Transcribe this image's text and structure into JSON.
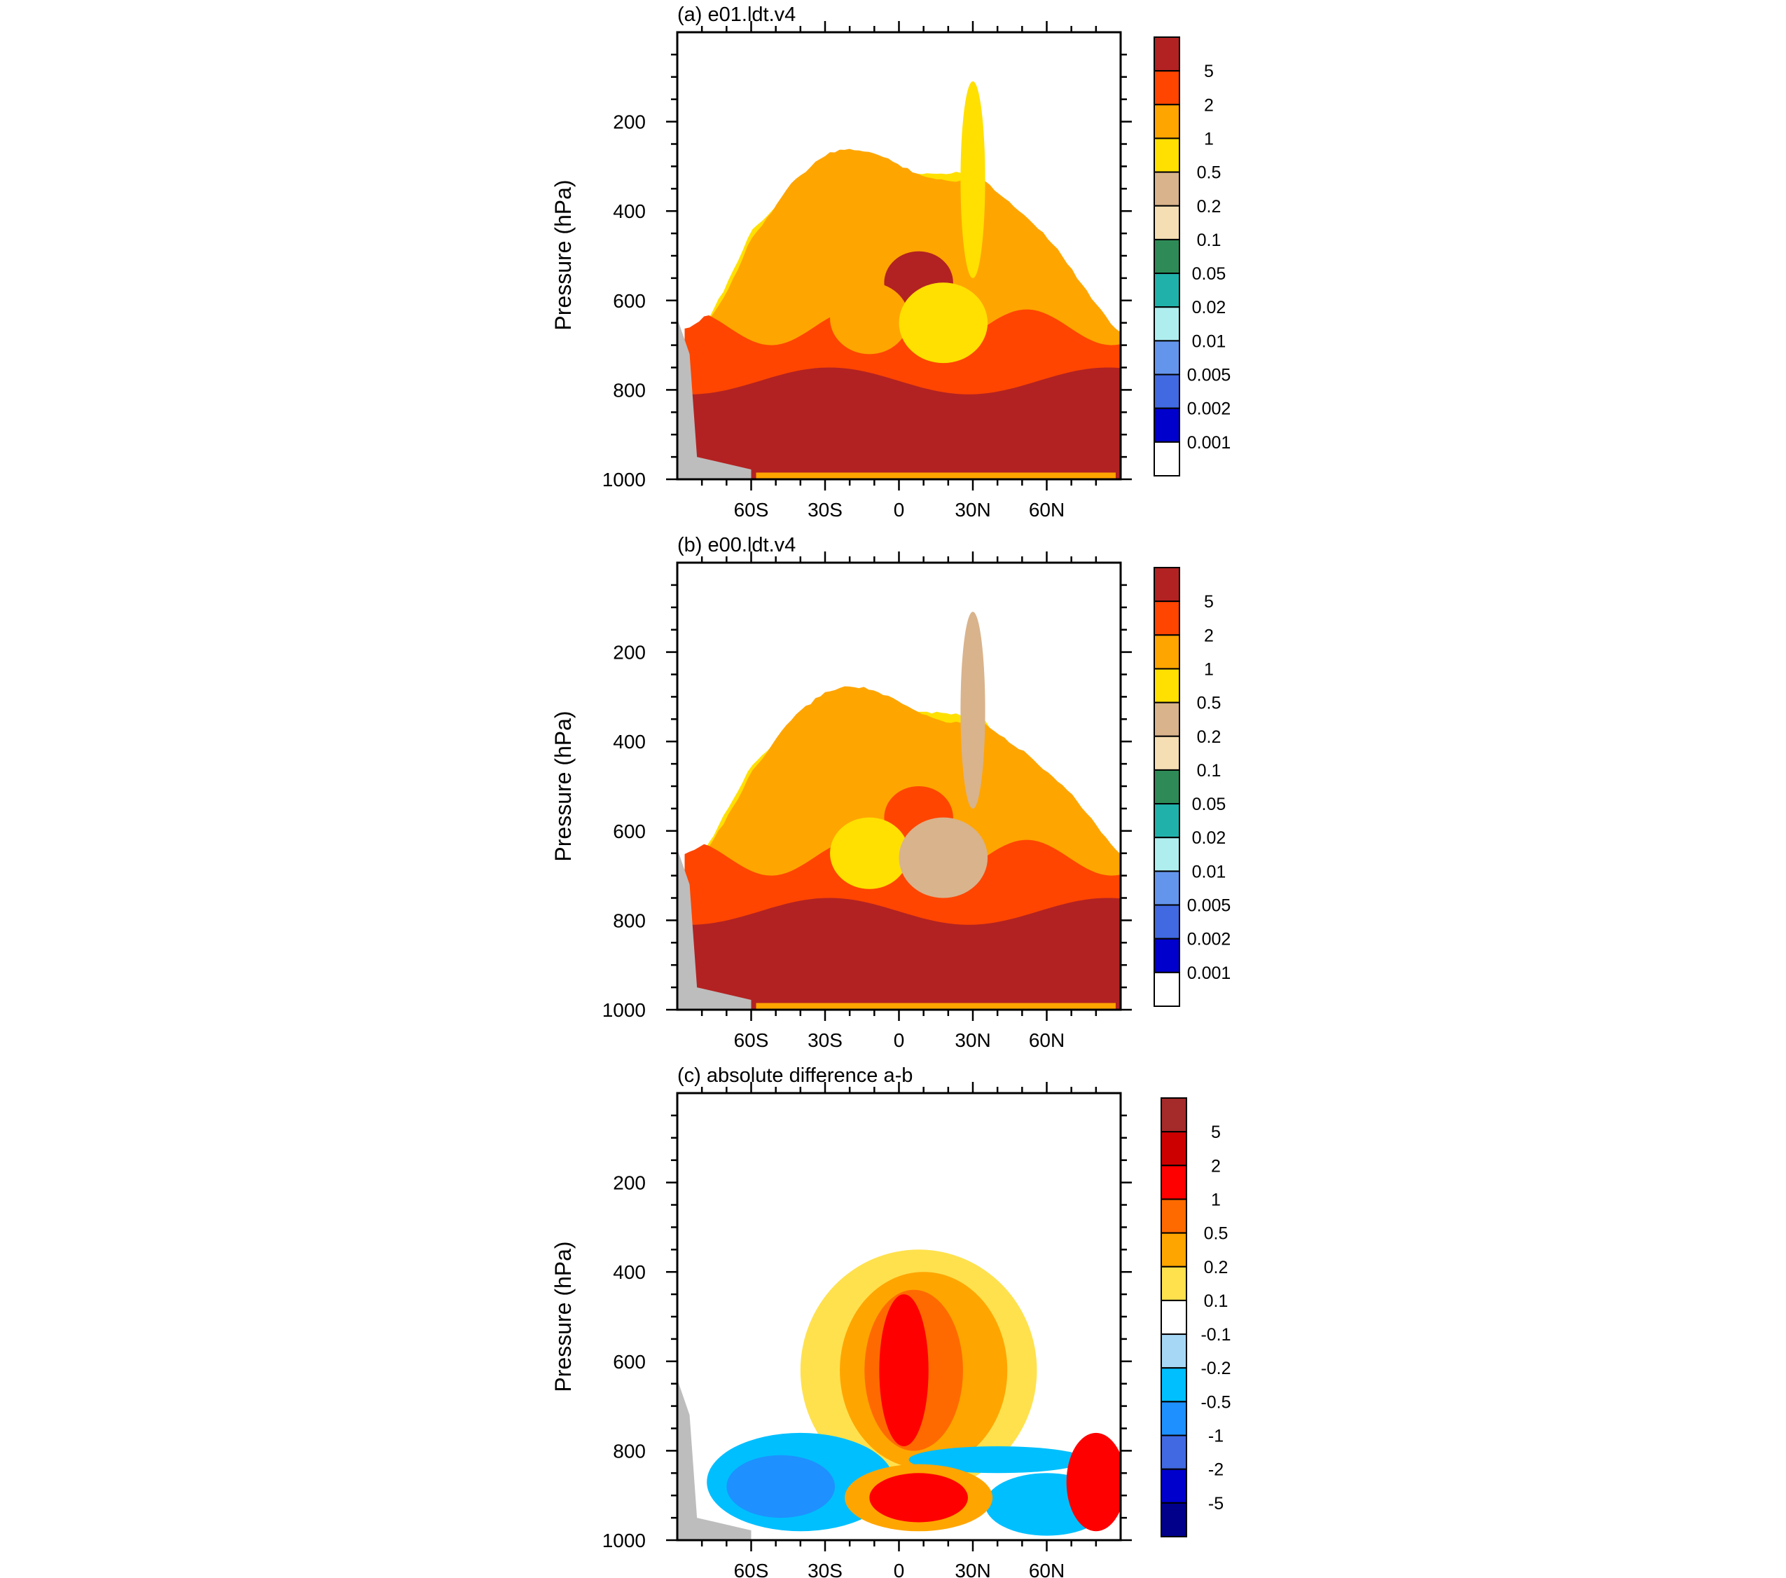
{
  "chart_data": [
    {
      "type": "heatmap",
      "title": "(a) e01.ldt.v4",
      "ylabel": "Pressure (hPa)",
      "xlabel": "",
      "xlim": [
        -90,
        90
      ],
      "ylim": [
        0,
        1000
      ],
      "y_reversed": true,
      "x_ticks": [
        "60S",
        "30S",
        "0",
        "30N",
        "60N"
      ],
      "x_tick_values": [
        -60,
        -30,
        0,
        30,
        60
      ],
      "y_ticks": [
        "200",
        "400",
        "600",
        "800",
        "1000"
      ],
      "y_tick_values": [
        200,
        400,
        600,
        800,
        1000
      ],
      "colorbar": {
        "labels": [
          "5",
          "2",
          "1",
          "0.5",
          "0.2",
          "0.1",
          "0.05",
          "0.02",
          "0.01",
          "0.005",
          "0.002",
          "0.001"
        ],
        "colors": [
          "#b22222",
          "#ff4500",
          "#ffa500",
          "#ffe000",
          "#d9b38c",
          "#f5deb3",
          "#2e8b57",
          "#20b2aa",
          "#afeeee",
          "#6495ed",
          "#4169e1",
          "#0000cd",
          "#ffffff"
        ]
      },
      "masked_color": "#bdbdbd",
      "tropopause_lat": [
        -87,
        -80,
        -70,
        -60,
        -45,
        -30,
        -15,
        0,
        15,
        25,
        30,
        35,
        45,
        60,
        75,
        88
      ],
      "tropopause_p": [
        640,
        600,
        500,
        380,
        300,
        265,
        255,
        252,
        250,
        248,
        240,
        265,
        340,
        450,
        560,
        620
      ],
      "feature_centers": [
        {
          "lat": 8,
          "p": 560,
          "level": 0
        },
        {
          "lat": -12,
          "p": 640,
          "level": 2
        },
        {
          "lat": 18,
          "p": 650,
          "level": 3
        },
        {
          "lat": 30,
          "p": 330,
          "level": 3
        }
      ]
    },
    {
      "type": "heatmap",
      "title": "(b) e00.ldt.v4",
      "ylabel": "Pressure (hPa)",
      "xlabel": "",
      "xlim": [
        -90,
        90
      ],
      "ylim": [
        0,
        1000
      ],
      "y_reversed": true,
      "x_ticks": [
        "60S",
        "30S",
        "0",
        "30N",
        "60N"
      ],
      "x_tick_values": [
        -60,
        -30,
        0,
        30,
        60
      ],
      "y_ticks": [
        "200",
        "400",
        "600",
        "800",
        "1000"
      ],
      "y_tick_values": [
        200,
        400,
        600,
        800,
        1000
      ],
      "colorbar": {
        "labels": [
          "5",
          "2",
          "1",
          "0.5",
          "0.2",
          "0.1",
          "0.05",
          "0.02",
          "0.01",
          "0.005",
          "0.002",
          "0.001"
        ],
        "colors": [
          "#b22222",
          "#ff4500",
          "#ffa500",
          "#ffe000",
          "#d9b38c",
          "#f5deb3",
          "#2e8b57",
          "#20b2aa",
          "#afeeee",
          "#6495ed",
          "#4169e1",
          "#0000cd",
          "#ffffff"
        ]
      },
      "masked_color": "#bdbdbd",
      "tropopause_lat": [
        -87,
        -80,
        -70,
        -60,
        -45,
        -30,
        -15,
        0,
        15,
        25,
        30,
        35,
        45,
        60,
        75,
        88
      ],
      "tropopause_p": [
        630,
        590,
        490,
        390,
        310,
        280,
        270,
        268,
        270,
        275,
        250,
        290,
        360,
        460,
        540,
        600
      ],
      "feature_centers": [
        {
          "lat": 8,
          "p": 570,
          "level": 1
        },
        {
          "lat": -12,
          "p": 650,
          "level": 3
        },
        {
          "lat": 18,
          "p": 660,
          "level": 4
        },
        {
          "lat": 30,
          "p": 330,
          "level": 4
        }
      ]
    },
    {
      "type": "heatmap",
      "title": "(c) absolute difference a-b",
      "ylabel": "Pressure (hPa)",
      "xlabel": "",
      "xlim": [
        -90,
        90
      ],
      "ylim": [
        0,
        1000
      ],
      "y_reversed": true,
      "x_ticks": [
        "60S",
        "30S",
        "0",
        "30N",
        "60N"
      ],
      "x_tick_values": [
        -60,
        -30,
        0,
        30,
        60
      ],
      "y_ticks": [
        "200",
        "400",
        "600",
        "800",
        "1000"
      ],
      "y_tick_values": [
        200,
        400,
        600,
        800,
        1000
      ],
      "colorbar": {
        "labels": [
          "5",
          "2",
          "1",
          "0.5",
          "0.2",
          "0.1",
          "-0.1",
          "-0.2",
          "-0.5",
          "-1",
          "-2",
          "-5"
        ],
        "colors": [
          "#a52a2a",
          "#cd0000",
          "#ff0000",
          "#ff6a00",
          "#ffa500",
          "#ffe14d",
          "#ffffff",
          "#a6d8f5",
          "#00bfff",
          "#1e90ff",
          "#4169e1",
          "#0000cd",
          "#00008b"
        ]
      },
      "masked_color": "#bdbdbd"
    }
  ]
}
